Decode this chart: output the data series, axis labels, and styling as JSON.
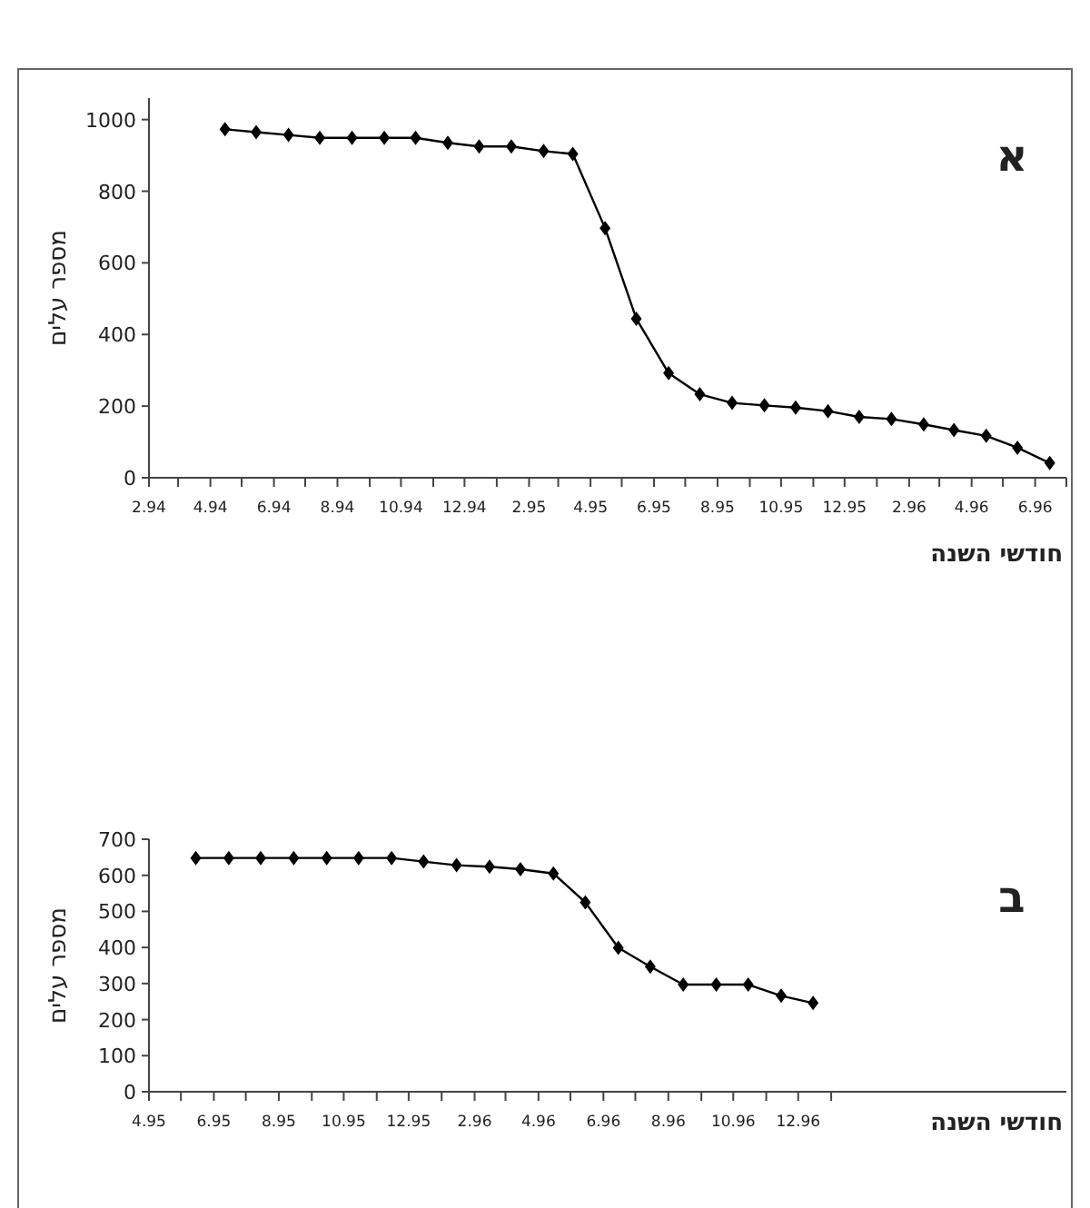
{
  "chart_data": [
    {
      "type": "line",
      "xlabel": "חודשי השנה",
      "ylabel": "מספר עלים",
      "annotations": [
        "א"
      ],
      "marker": "diamond",
      "line_style": "solid",
      "x": [
        "1994-04-15",
        "1994-05-15",
        "1994-06-15",
        "1994-07-15",
        "1994-08-15",
        "1994-09-15",
        "1994-10-15",
        "1994-11-15",
        "1994-12-15",
        "1995-01-15",
        "1995-02-15",
        "1995-03-15",
        "1995-04-15",
        "1995-05-15",
        "1995-06-15",
        "1995-07-15",
        "1995-08-15",
        "1995-09-15",
        "1995-10-15",
        "1995-11-15",
        "1995-12-15",
        "1996-01-15",
        "1996-02-15",
        "1996-03-15",
        "1996-04-15",
        "1996-05-15",
        "1996-06-15"
      ],
      "series": [
        {
          "color": "#000000",
          "values": [
            973,
            965,
            957,
            949,
            949,
            949,
            949,
            935,
            925,
            925,
            912,
            904,
            697,
            444,
            292,
            233,
            209,
            202,
            196,
            186,
            170,
            164,
            149,
            133,
            117,
            84,
            41
          ]
        }
      ],
      "xlim": [
        "1994-02",
        "1996-07"
      ],
      "xticks": [
        {
          "value": "1994-02",
          "label": "2.94"
        },
        {
          "value": "1994-03",
          "label": null
        },
        {
          "value": "1994-04",
          "label": "4.94"
        },
        {
          "value": "1994-05",
          "label": null
        },
        {
          "value": "1994-06",
          "label": "6.94"
        },
        {
          "value": "1994-07",
          "label": null
        },
        {
          "value": "1994-08",
          "label": "8.94"
        },
        {
          "value": "1994-09",
          "label": null
        },
        {
          "value": "1994-10",
          "label": "10.94"
        },
        {
          "value": "1994-11",
          "label": null
        },
        {
          "value": "1994-12",
          "label": "12.94"
        },
        {
          "value": "1995-01",
          "label": null
        },
        {
          "value": "1995-02",
          "label": "2.95"
        },
        {
          "value": "1995-03",
          "label": null
        },
        {
          "value": "1995-04",
          "label": "4.95"
        },
        {
          "value": "1995-05",
          "label": null
        },
        {
          "value": "1995-06",
          "label": "6.95"
        },
        {
          "value": "1995-07",
          "label": null
        },
        {
          "value": "1995-08",
          "label": "8.95"
        },
        {
          "value": "1995-09",
          "label": null
        },
        {
          "value": "1995-10",
          "label": "10.95"
        },
        {
          "value": "1995-11",
          "label": null
        },
        {
          "value": "1995-12",
          "label": "12.95"
        },
        {
          "value": "1996-01",
          "label": null
        },
        {
          "value": "1996-02",
          "label": "2.96"
        },
        {
          "value": "1996-03",
          "label": null
        },
        {
          "value": "1996-04",
          "label": "4.96"
        },
        {
          "value": "1996-05",
          "label": null
        },
        {
          "value": "1996-06",
          "label": "6.96"
        },
        {
          "value": "1996-07",
          "label": null
        }
      ],
      "ylim": [
        0,
        1060
      ],
      "yticks": [
        0,
        200,
        400,
        600,
        800,
        1000
      ],
      "grid": false
    },
    {
      "type": "line",
      "xlabel": "חודשי השנה",
      "ylabel": "מספר עלים",
      "annotations": [
        "ב"
      ],
      "marker": "diamond",
      "line_style": "solid",
      "x": [
        "1995-05-15",
        "1995-06-15",
        "1995-07-15",
        "1995-08-15",
        "1995-09-15",
        "1995-10-15",
        "1995-11-15",
        "1995-12-15",
        "1996-01-15",
        "1996-02-15",
        "1996-03-15",
        "1996-04-15",
        "1996-05-15",
        "1996-06-15",
        "1996-07-15",
        "1996-08-15",
        "1996-09-15",
        "1996-10-15",
        "1996-11-15",
        "1996-12-15"
      ],
      "series": [
        {
          "color": "#000000",
          "values": [
            648,
            648,
            648,
            648,
            648,
            648,
            648,
            638,
            628,
            624,
            617,
            605,
            525,
            399,
            347,
            297,
            297,
            297,
            266,
            246
          ]
        }
      ],
      "xlim": [
        "1995-04",
        "1997-08-10"
      ],
      "xticks": [
        {
          "value": "1995-04",
          "label": "4.95"
        },
        {
          "value": "1995-05",
          "label": null
        },
        {
          "value": "1995-06",
          "label": "6.95"
        },
        {
          "value": "1995-07",
          "label": null
        },
        {
          "value": "1995-08",
          "label": "8.95"
        },
        {
          "value": "1995-09",
          "label": null
        },
        {
          "value": "1995-10",
          "label": "10.95"
        },
        {
          "value": "1995-11",
          "label": null
        },
        {
          "value": "1995-12",
          "label": "12.95"
        },
        {
          "value": "1996-01",
          "label": null
        },
        {
          "value": "1996-02",
          "label": "2.96"
        },
        {
          "value": "1996-03",
          "label": null
        },
        {
          "value": "1996-04",
          "label": "4.96"
        },
        {
          "value": "1996-05",
          "label": null
        },
        {
          "value": "1996-06",
          "label": "6.96"
        },
        {
          "value": "1996-07",
          "label": null
        },
        {
          "value": "1996-08",
          "label": "8.96"
        },
        {
          "value": "1996-09",
          "label": null
        },
        {
          "value": "1996-10",
          "label": "10.96"
        },
        {
          "value": "1996-11",
          "label": null
        },
        {
          "value": "1996-12",
          "label": "12.96"
        },
        {
          "value": "1997-01",
          "label": null
        }
      ],
      "ylim": [
        0,
        700
      ],
      "yticks": [
        0,
        100,
        200,
        300,
        400,
        500,
        600,
        700
      ],
      "grid": false
    }
  ]
}
